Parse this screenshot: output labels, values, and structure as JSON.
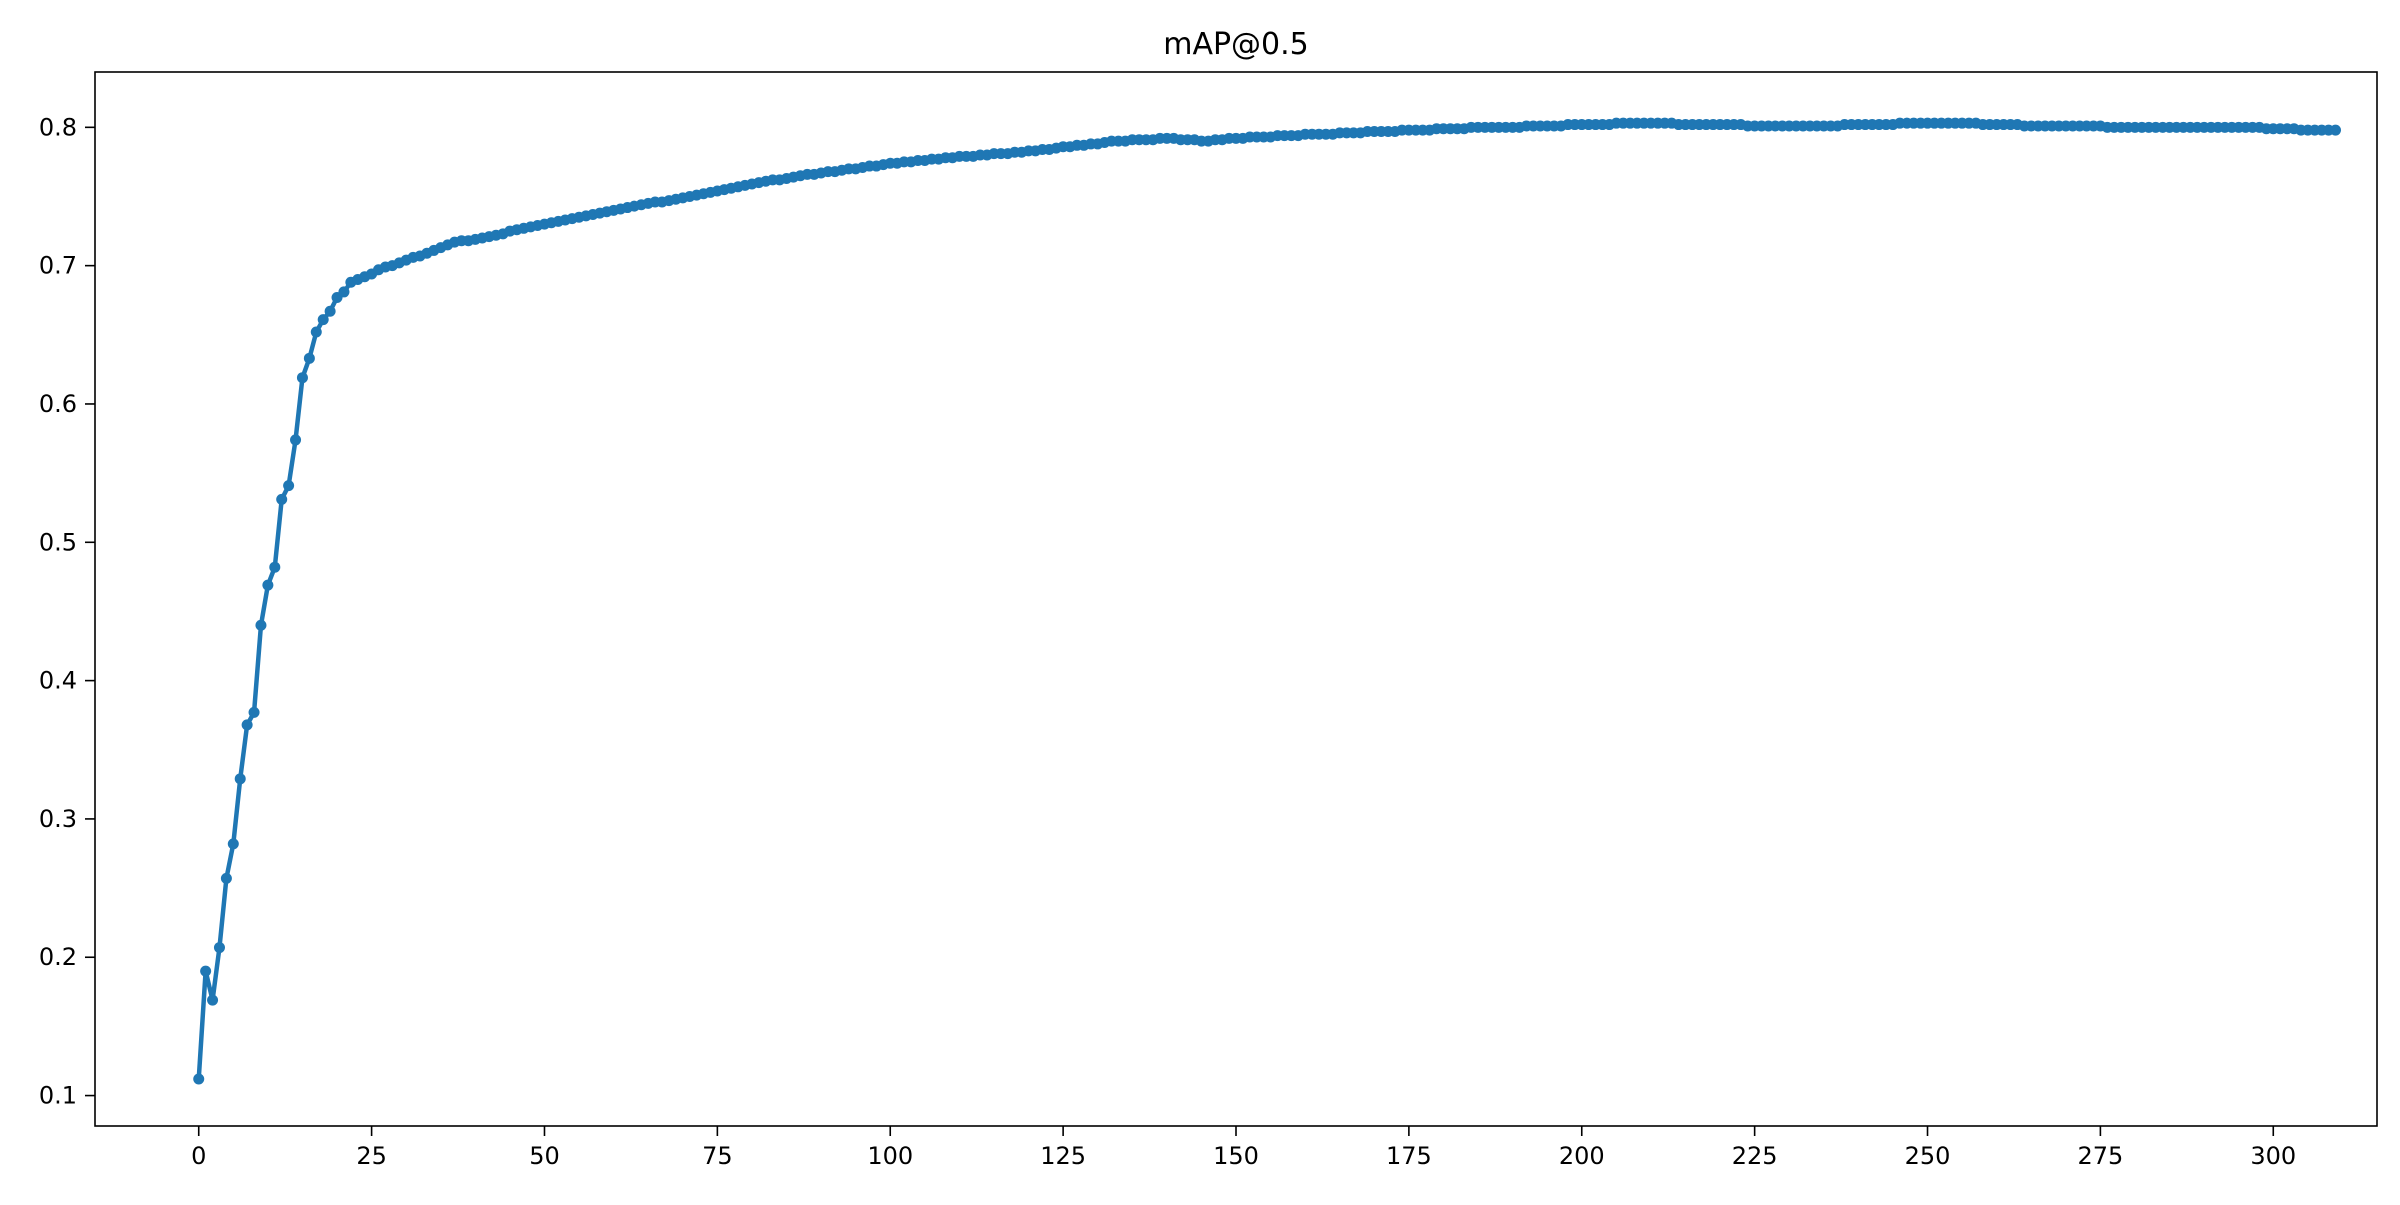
{
  "chart_data": {
    "type": "line",
    "title": "mAP@0.5",
    "xlabel": "",
    "ylabel": "",
    "xlim": [
      -15,
      315
    ],
    "ylim": [
      0.078,
      0.84
    ],
    "x_ticks": [
      0,
      25,
      50,
      75,
      100,
      125,
      150,
      175,
      200,
      225,
      250,
      275,
      300
    ],
    "y_ticks": [
      0.1,
      0.2,
      0.3,
      0.4,
      0.5,
      0.6,
      0.7,
      0.8
    ],
    "grid": false,
    "legend": "none",
    "color": "#1f77b4",
    "series": [
      {
        "marker": "circle",
        "x_start": 0,
        "x_step": 1,
        "y": [
          0.112,
          0.19,
          0.169,
          0.207,
          0.257,
          0.282,
          0.329,
          0.368,
          0.377,
          0.44,
          0.469,
          0.482,
          0.531,
          0.541,
          0.574,
          0.619,
          0.633,
          0.652,
          0.661,
          0.667,
          0.677,
          0.681,
          0.688,
          0.69,
          0.692,
          0.694,
          0.697,
          0.699,
          0.7,
          0.702,
          0.704,
          0.706,
          0.707,
          0.709,
          0.711,
          0.713,
          0.715,
          0.717,
          0.718,
          0.718,
          0.719,
          0.72,
          0.721,
          0.722,
          0.723,
          0.725,
          0.726,
          0.727,
          0.728,
          0.729,
          0.73,
          0.731,
          0.732,
          0.733,
          0.734,
          0.735,
          0.736,
          0.737,
          0.738,
          0.739,
          0.74,
          0.741,
          0.742,
          0.743,
          0.744,
          0.745,
          0.746,
          0.746,
          0.747,
          0.748,
          0.749,
          0.75,
          0.751,
          0.752,
          0.753,
          0.754,
          0.755,
          0.756,
          0.757,
          0.758,
          0.759,
          0.76,
          0.761,
          0.762,
          0.762,
          0.763,
          0.764,
          0.765,
          0.766,
          0.766,
          0.767,
          0.768,
          0.768,
          0.769,
          0.77,
          0.77,
          0.771,
          0.772,
          0.772,
          0.773,
          0.774,
          0.774,
          0.775,
          0.775,
          0.776,
          0.776,
          0.777,
          0.777,
          0.778,
          0.778,
          0.779,
          0.779,
          0.779,
          0.78,
          0.78,
          0.781,
          0.781,
          0.781,
          0.782,
          0.782,
          0.783,
          0.783,
          0.784,
          0.784,
          0.785,
          0.786,
          0.786,
          0.787,
          0.787,
          0.788,
          0.788,
          0.789,
          0.79,
          0.79,
          0.79,
          0.791,
          0.791,
          0.791,
          0.791,
          0.792,
          0.792,
          0.792,
          0.791,
          0.791,
          0.791,
          0.79,
          0.79,
          0.791,
          0.791,
          0.792,
          0.792,
          0.792,
          0.793,
          0.793,
          0.793,
          0.793,
          0.794,
          0.794,
          0.794,
          0.794,
          0.795,
          0.795,
          0.795,
          0.795,
          0.795,
          0.796,
          0.796,
          0.796,
          0.796,
          0.797,
          0.797,
          0.797,
          0.797,
          0.797,
          0.798,
          0.798,
          0.798,
          0.798,
          0.798,
          0.799,
          0.799,
          0.799,
          0.799,
          0.799,
          0.8,
          0.8,
          0.8,
          0.8,
          0.8,
          0.8,
          0.8,
          0.8,
          0.801,
          0.801,
          0.801,
          0.801,
          0.801,
          0.801,
          0.802,
          0.802,
          0.802,
          0.802,
          0.802,
          0.802,
          0.802,
          0.803,
          0.803,
          0.803,
          0.803,
          0.803,
          0.803,
          0.803,
          0.803,
          0.803,
          0.802,
          0.802,
          0.802,
          0.802,
          0.802,
          0.802,
          0.802,
          0.802,
          0.802,
          0.802,
          0.801,
          0.801,
          0.801,
          0.801,
          0.801,
          0.801,
          0.801,
          0.801,
          0.801,
          0.801,
          0.801,
          0.801,
          0.801,
          0.801,
          0.802,
          0.802,
          0.802,
          0.802,
          0.802,
          0.802,
          0.802,
          0.802,
          0.803,
          0.803,
          0.803,
          0.803,
          0.803,
          0.803,
          0.803,
          0.803,
          0.803,
          0.803,
          0.803,
          0.803,
          0.802,
          0.802,
          0.802,
          0.802,
          0.802,
          0.802,
          0.801,
          0.801,
          0.801,
          0.801,
          0.801,
          0.801,
          0.801,
          0.801,
          0.801,
          0.801,
          0.801,
          0.801,
          0.8,
          0.8,
          0.8,
          0.8,
          0.8,
          0.8,
          0.8,
          0.8,
          0.8,
          0.8,
          0.8,
          0.8,
          0.8,
          0.8,
          0.8,
          0.8,
          0.8,
          0.8,
          0.8,
          0.8,
          0.8,
          0.8,
          0.8,
          0.799,
          0.799,
          0.799,
          0.799,
          0.799,
          0.798,
          0.798,
          0.798,
          0.798,
          0.798,
          0.798
        ]
      }
    ]
  }
}
